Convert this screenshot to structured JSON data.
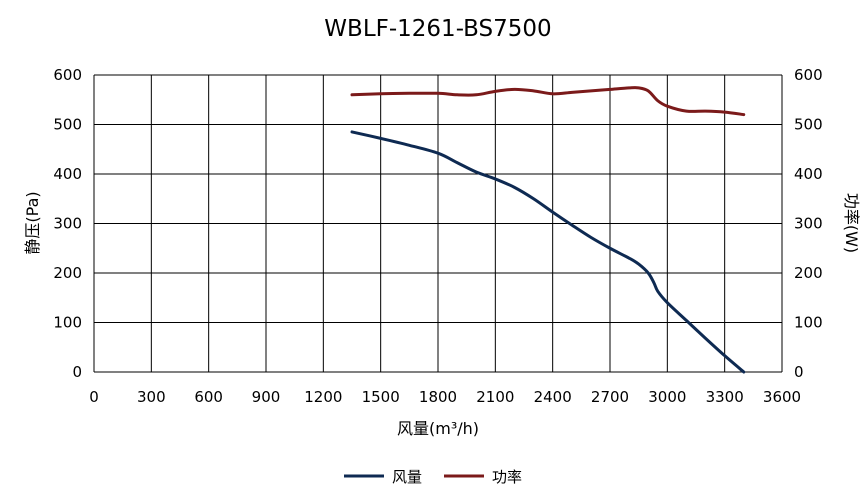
{
  "chart_data": {
    "type": "line",
    "title": "WBLF-1261-BS7500",
    "xlabel": "风量(m³/h)",
    "ylabel_left": "静压(Pa)",
    "ylabel_right": "功率(W)",
    "xlim": [
      0,
      3600
    ],
    "ylim_left": [
      0,
      600
    ],
    "ylim_right": [
      0,
      600
    ],
    "x_ticks": [
      "0",
      "300",
      "600",
      "900",
      "1200",
      "1500",
      "1800",
      "2100",
      "2400",
      "2700",
      "3000",
      "3300",
      "3600"
    ],
    "y_ticks_left": [
      "0",
      "100",
      "200",
      "300",
      "400",
      "500",
      "600"
    ],
    "y_ticks_right": [
      "0",
      "100",
      "200",
      "300",
      "400",
      "500",
      "600"
    ],
    "grid": true,
    "legend_position": "bottom",
    "series": [
      {
        "name": "风量",
        "axis": "left",
        "color": "#0e2a52",
        "x": [
          1350,
          1500,
          1650,
          1800,
          1900,
          2000,
          2100,
          2200,
          2300,
          2400,
          2500,
          2600,
          2700,
          2800,
          2850,
          2900,
          2930,
          2950,
          3000,
          3100,
          3200,
          3300,
          3400
        ],
        "y": [
          485,
          472,
          458,
          442,
          423,
          404,
          390,
          373,
          350,
          323,
          297,
          272,
          250,
          230,
          218,
          200,
          180,
          163,
          140,
          104,
          68,
          33,
          0
        ]
      },
      {
        "name": "功率",
        "axis": "right",
        "color": "#7b1a1a",
        "x": [
          1350,
          1500,
          1650,
          1800,
          1900,
          2000,
          2100,
          2200,
          2300,
          2400,
          2500,
          2600,
          2700,
          2800,
          2850,
          2900,
          2950,
          3000,
          3100,
          3200,
          3300,
          3400
        ],
        "y": [
          560,
          562,
          563,
          563,
          560,
          560,
          567,
          571,
          568,
          562,
          565,
          568,
          571,
          574,
          574,
          568,
          548,
          537,
          527,
          527,
          525,
          520
        ]
      }
    ]
  }
}
